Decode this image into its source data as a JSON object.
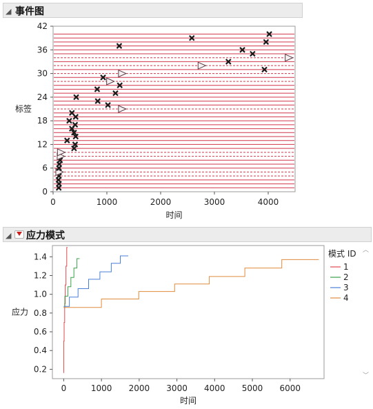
{
  "panel1": {
    "title": "事件图",
    "ylabel": "标签",
    "xlabel": "时间"
  },
  "panel2": {
    "title": "应力模式",
    "ylabel": "应力",
    "xlabel": "时间",
    "legend_title": "模式 ID"
  },
  "colors": {
    "event_line": "#d0344a",
    "marker_edge": "#5a3a42",
    "open_marker_fill": "#f4f0f2",
    "mode1": "#e0474c",
    "mode2": "#3aa14a",
    "mode3": "#4a7fd8",
    "mode4": "#e08a3c",
    "header_bg": "#ececec"
  },
  "icons": {
    "collapse": "disclosure-triangle-icon",
    "menu": "red-triangle-menu-icon"
  },
  "chart_data": [
    {
      "type": "line",
      "title": "事件图",
      "xlabel": "时间",
      "ylabel": "标签",
      "xlim": [
        0,
        4500
      ],
      "ylim": [
        0,
        42
      ],
      "xticks": [
        "0",
        "1000",
        "2000",
        "3000",
        "4000"
      ],
      "yticks": [
        "0",
        "6",
        "12",
        "18",
        "24",
        "30",
        "36",
        "42"
      ],
      "events": [
        {
          "label": 1,
          "time": 105,
          "event": "failure",
          "style": "solid"
        },
        {
          "label": 2,
          "time": 110,
          "event": "failure",
          "style": "solid"
        },
        {
          "label": 3,
          "time": 100,
          "event": "failure",
          "style": "solid"
        },
        {
          "label": 4,
          "time": 110,
          "event": "failure",
          "style": "dashed"
        },
        {
          "label": 5,
          "time": 115,
          "event": "censor",
          "style": "dashed"
        },
        {
          "label": 6,
          "time": 110,
          "event": "failure",
          "style": "solid"
        },
        {
          "label": 7,
          "time": 115,
          "event": "failure",
          "style": "solid"
        },
        {
          "label": 8,
          "time": 130,
          "event": "failure",
          "style": "solid"
        },
        {
          "label": 9,
          "time": 140,
          "event": "censor",
          "style": "dashed"
        },
        {
          "label": 10,
          "time": 145,
          "event": "censor",
          "style": "dashed"
        },
        {
          "label": 11,
          "time": 390,
          "event": "failure",
          "style": "solid"
        },
        {
          "label": 12,
          "time": 410,
          "event": "failure",
          "style": "solid"
        },
        {
          "label": 13,
          "time": 260,
          "event": "failure",
          "style": "solid"
        },
        {
          "label": 14,
          "time": 420,
          "event": "failure",
          "style": "solid"
        },
        {
          "label": 15,
          "time": 390,
          "event": "failure",
          "style": "solid"
        },
        {
          "label": 16,
          "time": 350,
          "event": "failure",
          "style": "solid"
        },
        {
          "label": 17,
          "time": 410,
          "event": "failure",
          "style": "solid"
        },
        {
          "label": 18,
          "time": 300,
          "event": "failure",
          "style": "solid"
        },
        {
          "label": 19,
          "time": 420,
          "event": "failure",
          "style": "solid"
        },
        {
          "label": 20,
          "time": 350,
          "event": "failure",
          "style": "solid"
        },
        {
          "label": 21,
          "time": 1280,
          "event": "censor",
          "style": "dashed"
        },
        {
          "label": 22,
          "time": 1020,
          "event": "failure",
          "style": "solid"
        },
        {
          "label": 23,
          "time": 830,
          "event": "failure",
          "style": "solid"
        },
        {
          "label": 24,
          "time": 430,
          "event": "failure",
          "style": "solid"
        },
        {
          "label": 25,
          "time": 1160,
          "event": "failure",
          "style": "solid"
        },
        {
          "label": 26,
          "time": 820,
          "event": "failure",
          "style": "solid"
        },
        {
          "label": 27,
          "time": 1240,
          "event": "failure",
          "style": "solid"
        },
        {
          "label": 28,
          "time": 1060,
          "event": "censor",
          "style": "dashed"
        },
        {
          "label": 29,
          "time": 930,
          "event": "failure",
          "style": "solid"
        },
        {
          "label": 30,
          "time": 1280,
          "event": "censor",
          "style": "dashed"
        },
        {
          "label": 31,
          "time": 3930,
          "event": "failure",
          "style": "solid"
        },
        {
          "label": 32,
          "time": 2760,
          "event": "censor",
          "style": "dashed"
        },
        {
          "label": 33,
          "time": 3260,
          "event": "failure",
          "style": "solid"
        },
        {
          "label": 34,
          "time": 4380,
          "event": "censor",
          "style": "dashed"
        },
        {
          "label": 35,
          "time": 3710,
          "event": "failure",
          "style": "solid"
        },
        {
          "label": 36,
          "time": 3520,
          "event": "failure",
          "style": "solid"
        },
        {
          "label": 37,
          "time": 1230,
          "event": "failure",
          "style": "solid"
        },
        {
          "label": 38,
          "time": 3960,
          "event": "failure",
          "style": "solid"
        },
        {
          "label": 39,
          "time": 2580,
          "event": "failure",
          "style": "solid"
        },
        {
          "label": 40,
          "time": 4020,
          "event": "failure",
          "style": "solid"
        }
      ]
    },
    {
      "type": "line",
      "title": "应力模式",
      "xlabel": "时间",
      "ylabel": "应力",
      "xlim": [
        -300,
        6900
      ],
      "ylim": [
        0.1,
        1.52
      ],
      "xticks": [
        "0",
        "1000",
        "2000",
        "3000",
        "4000",
        "5000",
        "6000"
      ],
      "yticks": [
        "0.2",
        "0.4",
        "0.6",
        "0.8",
        "1.0",
        "1.2",
        "1.4"
      ],
      "legend": {
        "title": "模式 ID",
        "placement": "right"
      },
      "series": [
        {
          "name": "1",
          "step_points": [
            [
              0,
              0.16
            ],
            [
              0,
              0.5
            ],
            [
              10,
              0.5
            ],
            [
              10,
              0.7
            ],
            [
              25,
              0.7
            ],
            [
              25,
              0.9
            ],
            [
              40,
              0.9
            ],
            [
              40,
              1.1
            ],
            [
              60,
              1.1
            ],
            [
              60,
              1.3
            ],
            [
              80,
              1.3
            ],
            [
              80,
              1.5
            ],
            [
              100,
              1.5
            ]
          ]
        },
        {
          "name": "2",
          "step_points": [
            [
              0,
              0.86
            ],
            [
              30,
              0.86
            ],
            [
              30,
              0.98
            ],
            [
              110,
              0.98
            ],
            [
              110,
              1.08
            ],
            [
              190,
              1.08
            ],
            [
              190,
              1.18
            ],
            [
              270,
              1.18
            ],
            [
              270,
              1.28
            ],
            [
              350,
              1.28
            ],
            [
              350,
              1.38
            ],
            [
              420,
              1.38
            ]
          ]
        },
        {
          "name": "3",
          "step_points": [
            [
              0,
              0.87
            ],
            [
              150,
              0.87
            ],
            [
              150,
              0.97
            ],
            [
              380,
              0.97
            ],
            [
              380,
              1.06
            ],
            [
              660,
              1.06
            ],
            [
              660,
              1.16
            ],
            [
              960,
              1.16
            ],
            [
              960,
              1.24
            ],
            [
              1260,
              1.24
            ],
            [
              1260,
              1.33
            ],
            [
              1500,
              1.33
            ],
            [
              1500,
              1.41
            ],
            [
              1710,
              1.41
            ]
          ]
        },
        {
          "name": "4",
          "step_points": [
            [
              0,
              0.86
            ],
            [
              1000,
              0.86
            ],
            [
              1000,
              0.95
            ],
            [
              1990,
              0.95
            ],
            [
              1990,
              1.03
            ],
            [
              2940,
              1.03
            ],
            [
              2940,
              1.11
            ],
            [
              3860,
              1.11
            ],
            [
              3860,
              1.19
            ],
            [
              4800,
              1.19
            ],
            [
              4800,
              1.28
            ],
            [
              5780,
              1.28
            ],
            [
              5780,
              1.37
            ],
            [
              6760,
              1.37
            ]
          ]
        }
      ]
    }
  ]
}
